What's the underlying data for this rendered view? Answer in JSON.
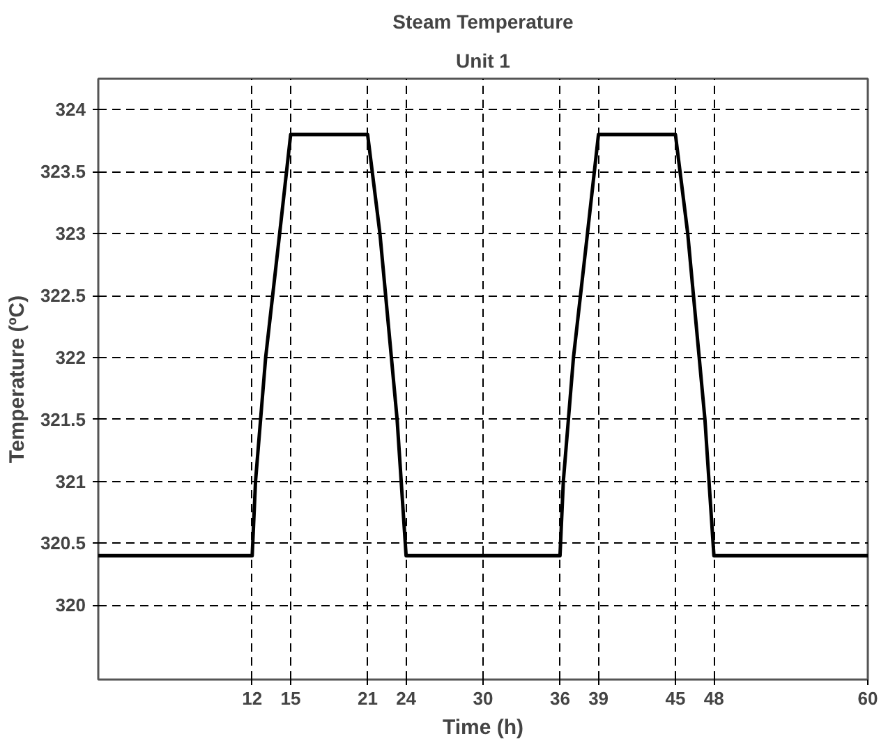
{
  "chart_data": {
    "type": "line",
    "title": "Steam Temperature",
    "subtitle": "Unit 1",
    "xlabel": "Time (h)",
    "ylabel": "Temperature (ºC)",
    "x": [
      0,
      12,
      12.26,
      13.05,
      14.14,
      15,
      21,
      21.96,
      23.3,
      24,
      36,
      36.26,
      37.05,
      38.14,
      39,
      45,
      45.96,
      47.3,
      48,
      60
    ],
    "series": [
      {
        "color": "#000000",
        "values": [
          320.4,
          320.4,
          321.0,
          322.0,
          323.0,
          323.8,
          323.8,
          323.0,
          321.5,
          320.4,
          320.4,
          321.0,
          322.0,
          323.0,
          323.8,
          323.8,
          323.0,
          321.5,
          320.4,
          320.4
        ]
      }
    ],
    "xlim": [
      0,
      60
    ],
    "ylim": [
      319.4,
      324.25
    ],
    "xticks": [
      12,
      15,
      21,
      24,
      30,
      36,
      39,
      45,
      48,
      60
    ],
    "yticks": [
      320,
      320.5,
      321,
      321.5,
      322,
      322.5,
      323,
      323.5,
      324
    ],
    "grid": true,
    "line_style": "solid"
  }
}
